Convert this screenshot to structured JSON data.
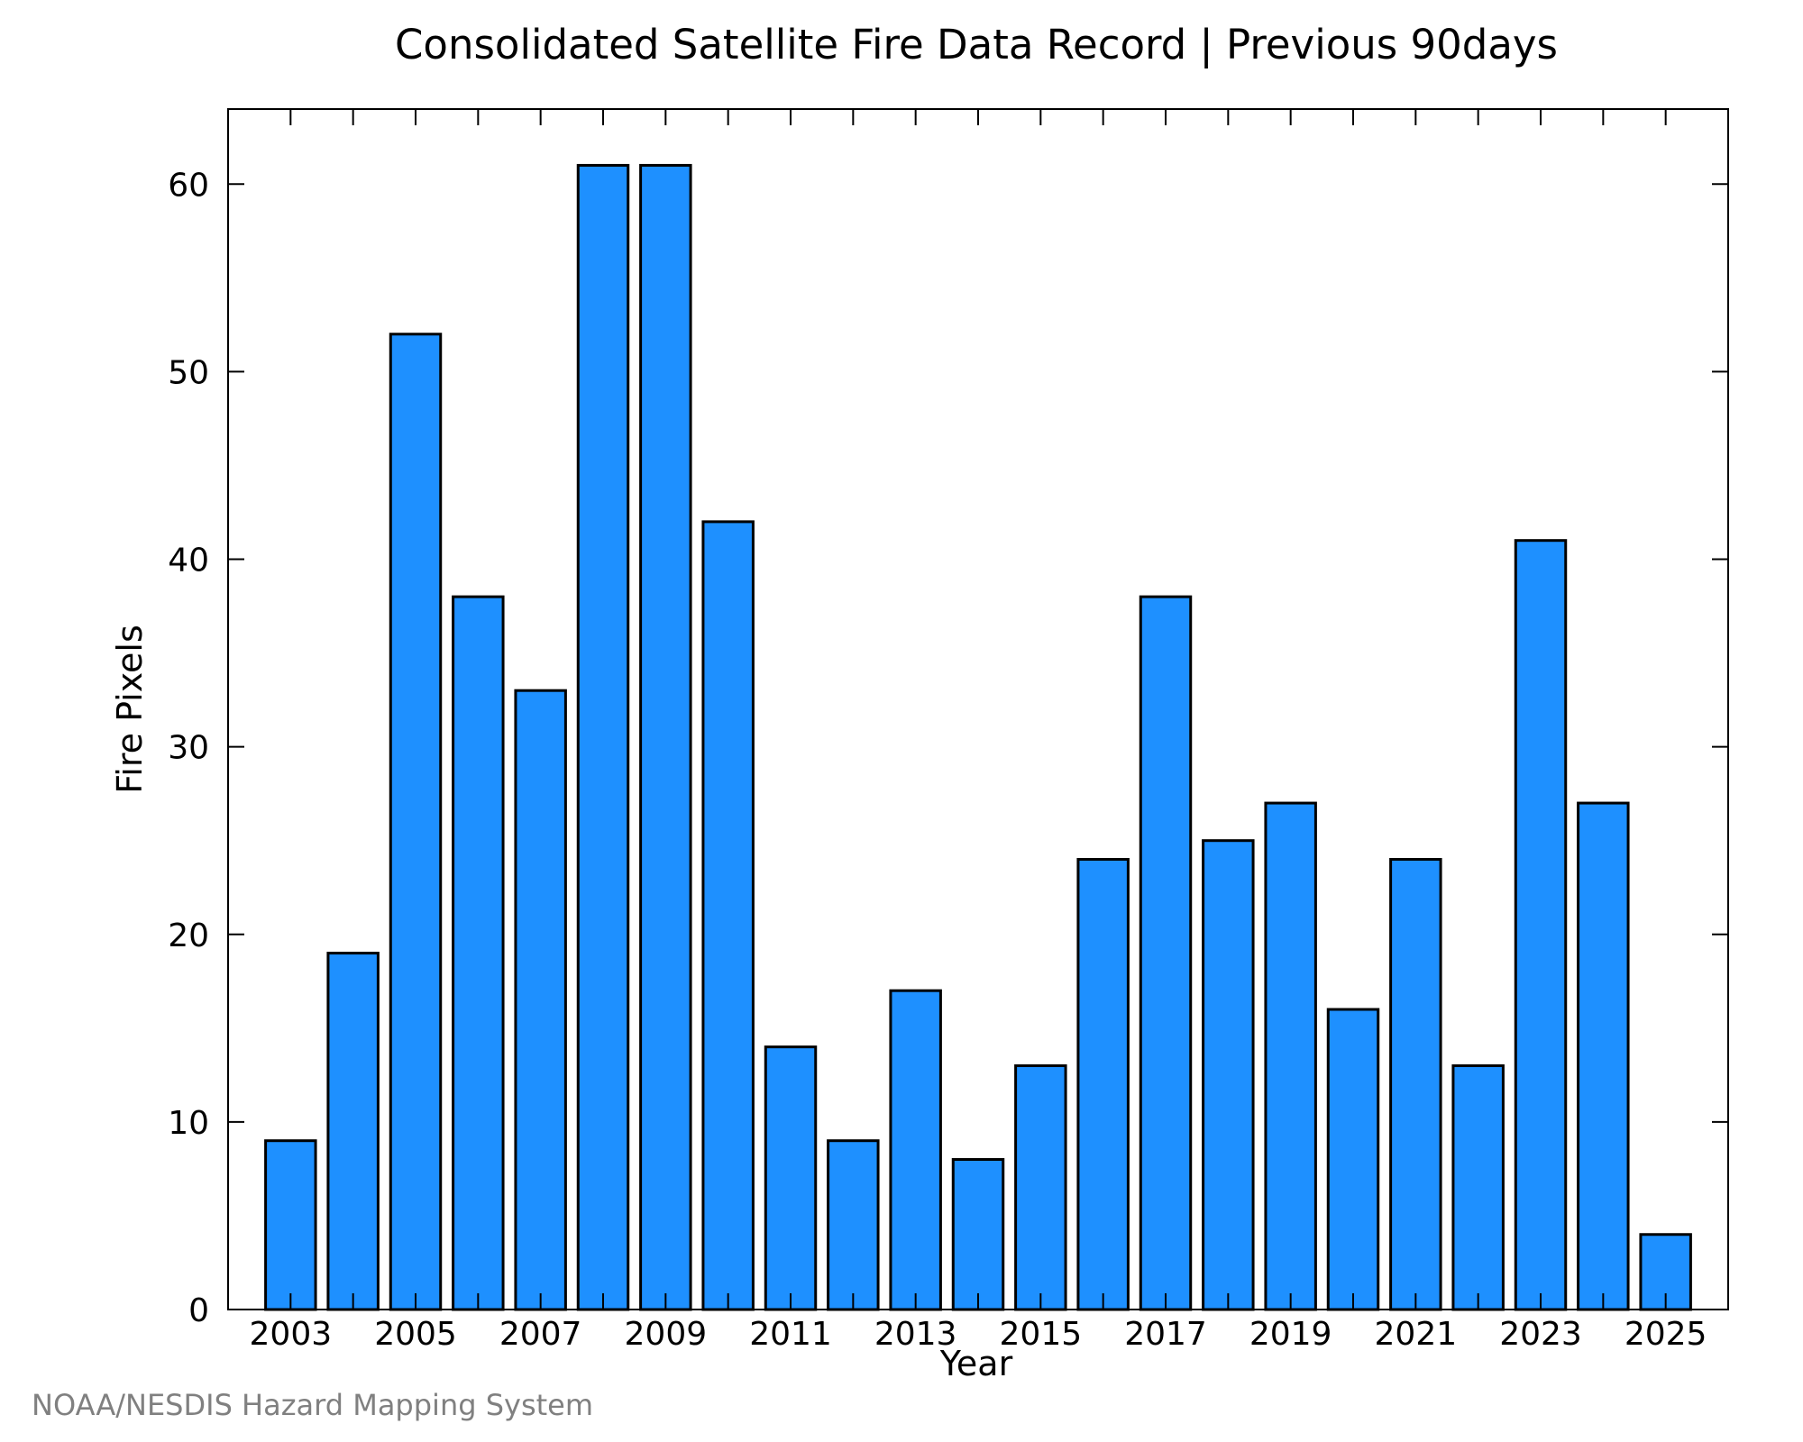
{
  "chart_data": {
    "type": "bar",
    "title": "Consolidated Satellite Fire Data Record | Previous 90days",
    "xlabel": "Year",
    "ylabel": "Fire Pixels",
    "categories": [
      "2003",
      "2004",
      "2005",
      "2006",
      "2007",
      "2008",
      "2009",
      "2010",
      "2011",
      "2012",
      "2013",
      "2014",
      "2015",
      "2016",
      "2017",
      "2018",
      "2019",
      "2020",
      "2021",
      "2022",
      "2023",
      "2024",
      "2025"
    ],
    "values": [
      9,
      19,
      52,
      38,
      33,
      61,
      61,
      42,
      14,
      9,
      17,
      8,
      13,
      24,
      38,
      25,
      27,
      16,
      24,
      13,
      41,
      27,
      4
    ],
    "x_tick_labels": [
      "2003",
      "2005",
      "2007",
      "2009",
      "2011",
      "2013",
      "2015",
      "2017",
      "2019",
      "2021",
      "2023",
      "2025"
    ],
    "y_ticks": [
      0,
      10,
      20,
      30,
      40,
      50,
      60
    ],
    "ylim": [
      0,
      64
    ],
    "grid": false,
    "bar_color": "#1e90ff",
    "bar_edge_color": "#000000"
  },
  "footer": {
    "credit": "NOAA/NESDIS Hazard Mapping System"
  }
}
